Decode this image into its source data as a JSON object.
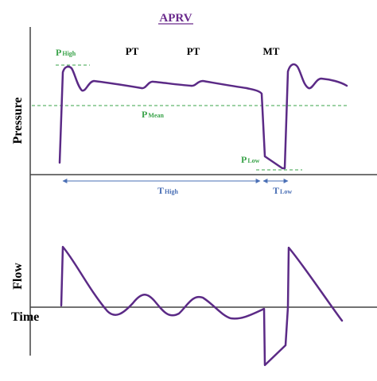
{
  "title": "APRV",
  "axes": {
    "pressure_label": "Pressure",
    "flow_label": "Flow",
    "time_label": "Time"
  },
  "phases": [
    "PT",
    "PT",
    "MT"
  ],
  "parameters": {
    "p_high": {
      "main": "P",
      "sub": "High"
    },
    "p_mean": {
      "main": "P",
      "sub": "Mean"
    },
    "p_low": {
      "main": "P",
      "sub": "Low"
    },
    "t_high": {
      "main": "T",
      "sub": "High"
    },
    "t_low": {
      "main": "T",
      "sub": "Low"
    }
  },
  "colors": {
    "title": "#6a2a8c",
    "waveform": "#5b2a86",
    "pressure_params": "#3aa34a",
    "time_params": "#4a6fb5",
    "axes": "#444444",
    "text": "#000000"
  }
}
